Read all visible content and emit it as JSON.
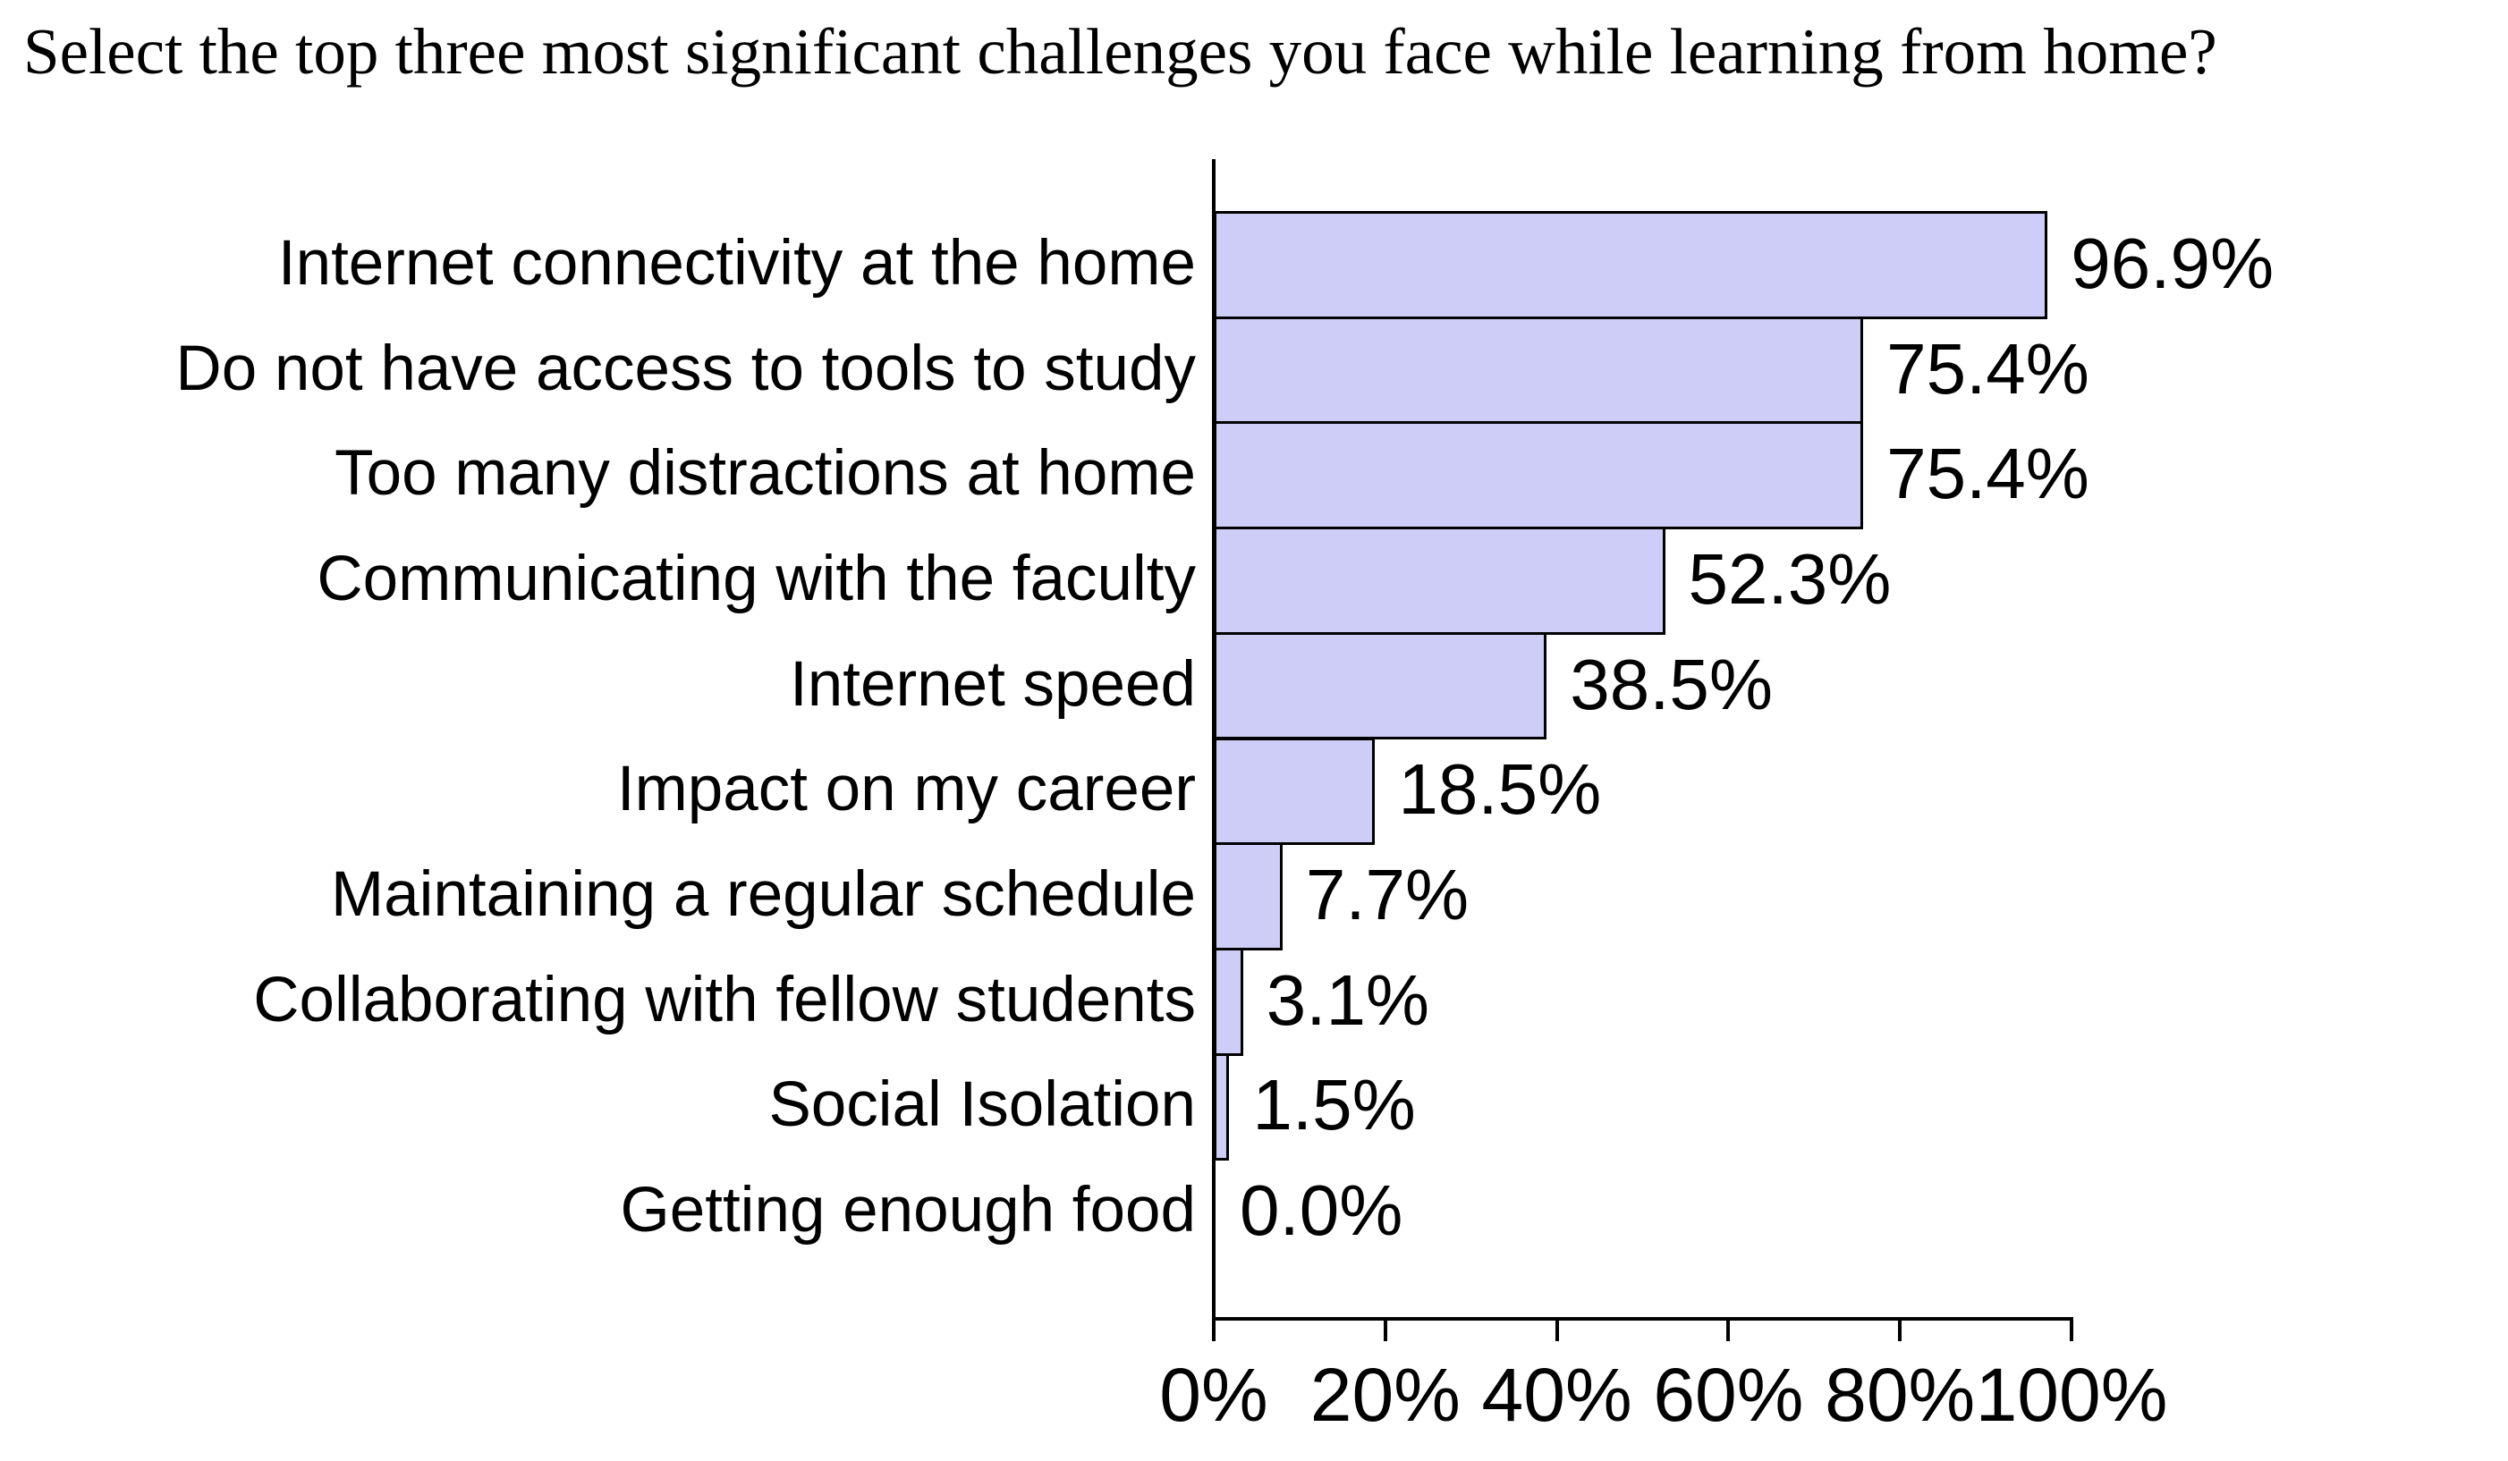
{
  "title": "Select the top three most significant challenges you face while learning from home?",
  "chart_data": {
    "type": "bar",
    "orientation": "horizontal",
    "title": "Select the top three most significant challenges you face while learning from home?",
    "categories": [
      "Internet connectivity at the home",
      "Do not have access to tools to study",
      "Too many distractions at home",
      "Communicating with the faculty",
      "Internet speed",
      "Impact on my career",
      "Maintaining a regular schedule",
      "Collaborating with fellow students",
      "Social Isolation",
      "Getting enough food"
    ],
    "values": [
      96.9,
      75.4,
      75.4,
      52.3,
      38.5,
      18.5,
      7.7,
      3.1,
      1.5,
      0.0
    ],
    "value_labels": [
      "96.9%",
      "75.4%",
      "75.4%",
      "52.3%",
      "38.5%",
      "18.5%",
      "7.7%",
      "3.1%",
      "1.5%",
      "0.0%"
    ],
    "xlabel": "",
    "ylabel": "",
    "xlim": [
      0,
      100
    ],
    "x_ticks": [
      0,
      20,
      40,
      60,
      80,
      100
    ],
    "x_tick_labels": [
      "0%",
      "20%",
      "40%",
      "60%",
      "80%",
      "100%"
    ],
    "grid": false,
    "legend": false,
    "bar_color": "#cdcdf8",
    "bar_border_color": "#000000",
    "axis_color": "#000000",
    "text_color": "#000000",
    "background_color": "#ffffff"
  }
}
